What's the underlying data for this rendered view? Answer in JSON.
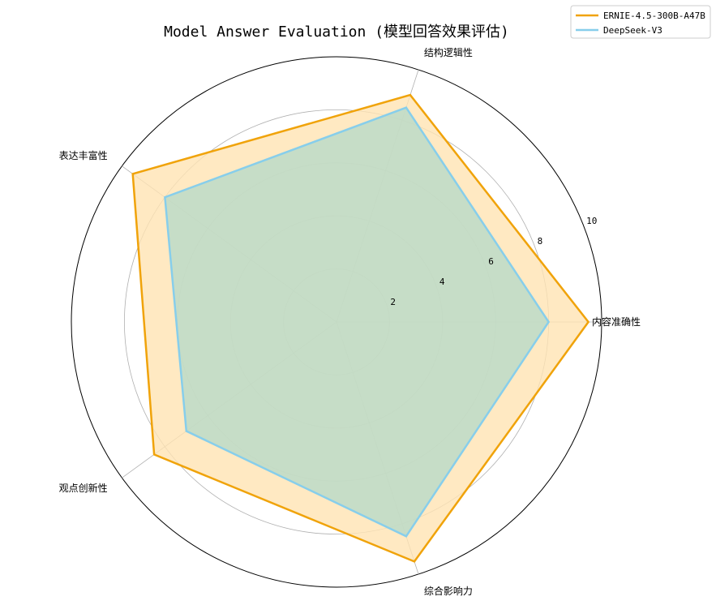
{
  "chart_data": {
    "type": "radar",
    "title": "Model Answer Evaluation (模型回答效果评估)",
    "categories": [
      "内容准确性",
      "结构逻辑性",
      "表达丰富性",
      "观点创新性",
      "综合影响力"
    ],
    "rlim": [
      0,
      10
    ],
    "rticks": [
      2,
      4,
      6,
      8,
      10
    ],
    "rtick_labels": [
      "2",
      "4",
      "6",
      "8",
      "10"
    ],
    "grid": true,
    "legend_position": "top-right",
    "series": [
      {
        "name": "ERNIE-4.5-300B-A47B",
        "values": [
          9.5,
          9.0,
          9.5,
          8.5,
          9.5
        ],
        "color": "#F0A30A",
        "fill": "#FFE3B3"
      },
      {
        "name": "DeepSeek-V3",
        "values": [
          8.0,
          8.5,
          8.0,
          7.0,
          8.5
        ],
        "color": "#87CEEB",
        "fill": "#B8D9C8"
      }
    ]
  }
}
